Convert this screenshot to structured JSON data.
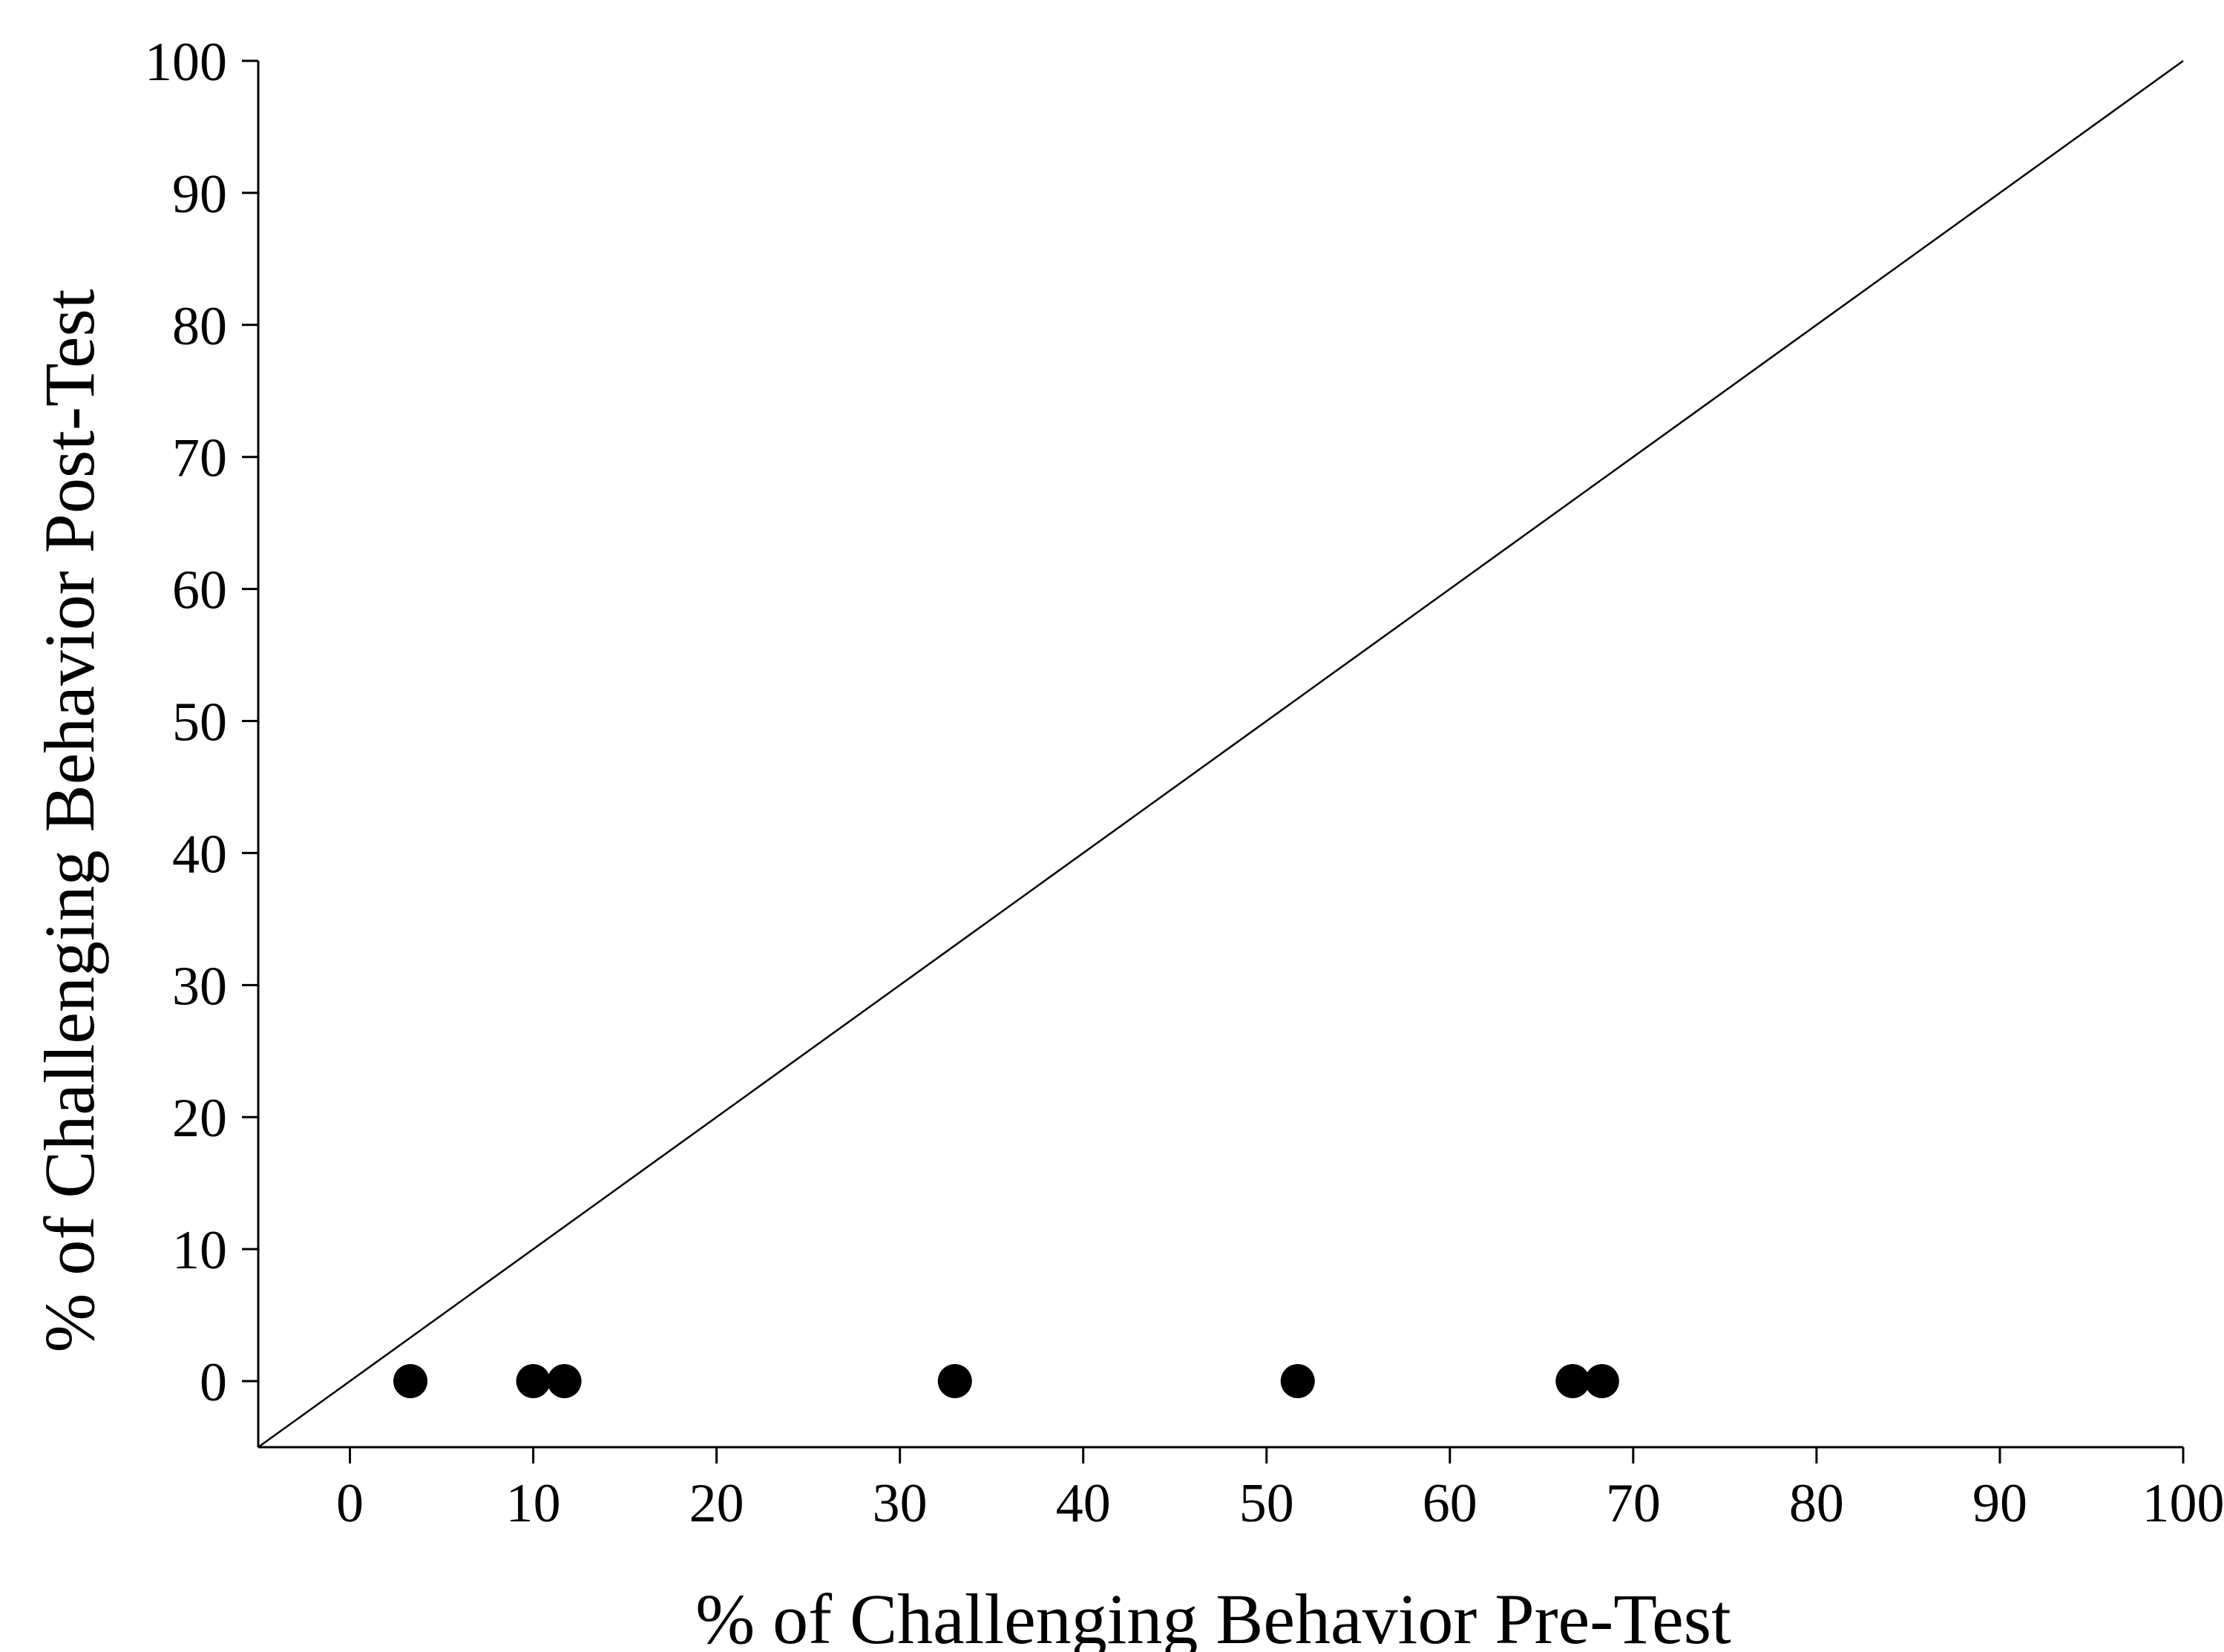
{
  "chart_data": {
    "type": "scatter",
    "title": "",
    "xlabel": "% of Challenging Behavior Pre-Test",
    "ylabel": "% of Challenging Behavior Post-Test",
    "xlim": [
      -5,
      100
    ],
    "ylim": [
      -5,
      100
    ],
    "xticks": [
      "0",
      "10",
      "20",
      "30",
      "40",
      "50",
      "60",
      "70",
      "80",
      "90",
      "100"
    ],
    "yticks": [
      "0",
      "10",
      "20",
      "30",
      "40",
      "50",
      "60",
      "70",
      "80",
      "90",
      "100"
    ],
    "grid": false,
    "legend": "none",
    "reference_line": {
      "type": "identity",
      "from": [
        -5,
        -5
      ],
      "to": [
        100,
        100
      ]
    },
    "points": [
      {
        "x": 3.3,
        "y": 0
      },
      {
        "x": 10.0,
        "y": 0
      },
      {
        "x": 11.7,
        "y": 0
      },
      {
        "x": 33.0,
        "y": 0
      },
      {
        "x": 51.7,
        "y": 0
      },
      {
        "x": 66.7,
        "y": 0
      },
      {
        "x": 68.3,
        "y": 0
      }
    ],
    "colors": {
      "marker": "#000000",
      "line": "#000000"
    }
  }
}
